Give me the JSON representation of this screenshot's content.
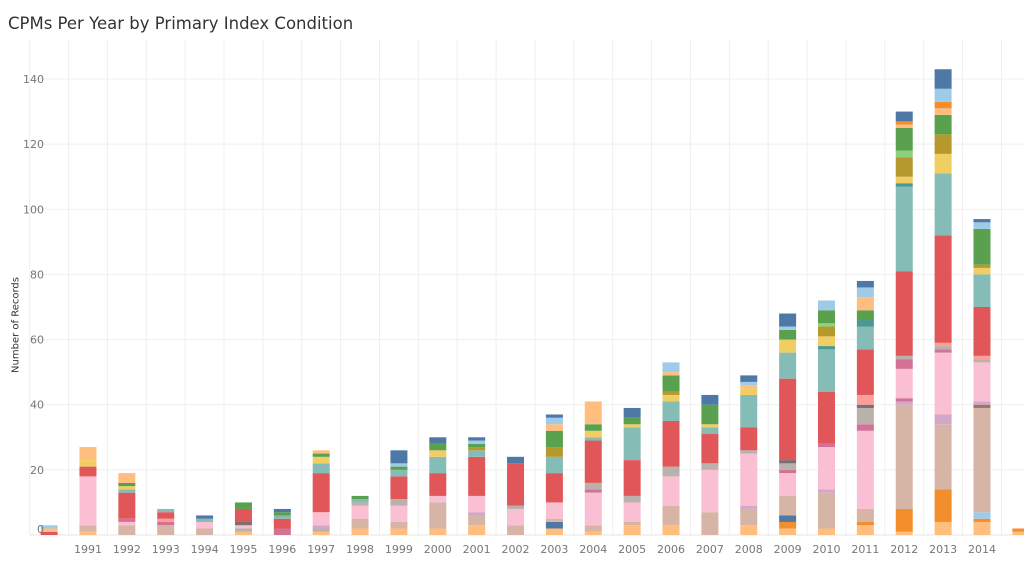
{
  "chart_data": {
    "type": "bar",
    "stacked": true,
    "title": "CPMs Per Year by Primary Index Condition",
    "xlabel": "",
    "ylabel": "Number of Records",
    "ylim": [
      0,
      140
    ],
    "yticks": [
      0,
      20,
      40,
      60,
      80,
      100,
      120,
      140
    ],
    "grid": true,
    "legend": "none",
    "colors": {
      "lo": "#ffbe7d",
      "or": "#f28e2b",
      "tan": "#d7b5a6",
      "pk": "#fabfd2",
      "mv": "#d4a6c8",
      "rp": "#d37295",
      "gy": "#bab0ac",
      "dg": "#79706e",
      "sal": "#ff9d9a",
      "red": "#e15759",
      "tl": "#86bcb6",
      "dt": "#499894",
      "yl": "#f1ce63",
      "ol": "#b6992d",
      "lg": "#8cd17d",
      "gr": "#59a14f",
      "lb": "#a0cbe8",
      "bl": "#4e79a7",
      "br": "#9d7660"
    },
    "bars": [
      {
        "year": "",
        "total": 3,
        "segments": [
          [
            "red",
            1
          ],
          [
            "lo",
            1
          ],
          [
            "lb",
            1
          ]
        ]
      },
      {
        "year": "1991",
        "total": 27,
        "segments": [
          [
            "lo",
            1
          ],
          [
            "tan",
            2
          ],
          [
            "pk",
            15
          ],
          [
            "red",
            3
          ],
          [
            "yl",
            2
          ],
          [
            "lo",
            4
          ]
        ]
      },
      {
        "year": "1992",
        "total": 19,
        "segments": [
          [
            "tan",
            3
          ],
          [
            "pk",
            1
          ],
          [
            "rp",
            1
          ],
          [
            "red",
            8
          ],
          [
            "tl",
            1
          ],
          [
            "yl",
            1
          ],
          [
            "gr",
            1
          ],
          [
            "lo",
            3
          ]
        ]
      },
      {
        "year": "1993",
        "total": 8,
        "segments": [
          [
            "tan",
            3
          ],
          [
            "rp",
            1
          ],
          [
            "sal",
            1
          ],
          [
            "red",
            2
          ],
          [
            "tl",
            1
          ]
        ]
      },
      {
        "year": "1994",
        "total": 6,
        "segments": [
          [
            "tan",
            2
          ],
          [
            "pk",
            2
          ],
          [
            "tl",
            1
          ],
          [
            "bl",
            1
          ]
        ]
      },
      {
        "year": "1995",
        "total": 10,
        "segments": [
          [
            "lo",
            1
          ],
          [
            "gy",
            1
          ],
          [
            "pk",
            1
          ],
          [
            "dg",
            1
          ],
          [
            "red",
            4
          ],
          [
            "gr",
            2
          ]
        ]
      },
      {
        "year": "1996",
        "total": 8,
        "segments": [
          [
            "rp",
            2
          ],
          [
            "red",
            3
          ],
          [
            "tl",
            1
          ],
          [
            "gr",
            1
          ],
          [
            "bl",
            1
          ]
        ]
      },
      {
        "year": "1997",
        "total": 26,
        "segments": [
          [
            "lo",
            1
          ],
          [
            "gy",
            1
          ],
          [
            "mv",
            1
          ],
          [
            "pk",
            4
          ],
          [
            "red",
            12
          ],
          [
            "tl",
            3
          ],
          [
            "yl",
            2
          ],
          [
            "gr",
            1
          ],
          [
            "lo",
            1
          ]
        ]
      },
      {
        "year": "1998",
        "total": 12,
        "segments": [
          [
            "lo",
            2
          ],
          [
            "tan",
            3
          ],
          [
            "pk",
            4
          ],
          [
            "gy",
            1
          ],
          [
            "tl",
            1
          ],
          [
            "gr",
            1
          ]
        ]
      },
      {
        "year": "1999",
        "total": 26,
        "segments": [
          [
            "lo",
            2
          ],
          [
            "tan",
            2
          ],
          [
            "pk",
            5
          ],
          [
            "gy",
            2
          ],
          [
            "red",
            7
          ],
          [
            "tl",
            2
          ],
          [
            "gr",
            1
          ],
          [
            "lb",
            1
          ],
          [
            "bl",
            4
          ]
        ]
      },
      {
        "year": "2000",
        "total": 30,
        "segments": [
          [
            "lo",
            2
          ],
          [
            "tan",
            8
          ],
          [
            "pk",
            2
          ],
          [
            "red",
            7
          ],
          [
            "tl",
            5
          ],
          [
            "yl",
            2
          ],
          [
            "gr",
            2
          ],
          [
            "bl",
            2
          ]
        ]
      },
      {
        "year": "2001",
        "total": 30,
        "segments": [
          [
            "lo",
            3
          ],
          [
            "tan",
            3
          ],
          [
            "mv",
            1
          ],
          [
            "pk",
            5
          ],
          [
            "red",
            12
          ],
          [
            "tl",
            2
          ],
          [
            "ol",
            1
          ],
          [
            "gr",
            1
          ],
          [
            "lb",
            1
          ],
          [
            "bl",
            1
          ]
        ]
      },
      {
        "year": "2002",
        "total": 24,
        "segments": [
          [
            "tan",
            3
          ],
          [
            "pk",
            5
          ],
          [
            "gy",
            1
          ],
          [
            "red",
            13
          ],
          [
            "bl",
            2
          ]
        ]
      },
      {
        "year": "2003",
        "total": 37,
        "segments": [
          [
            "lo",
            2
          ],
          [
            "bl",
            2
          ],
          [
            "tan",
            1
          ],
          [
            "pk",
            5
          ],
          [
            "red",
            9
          ],
          [
            "tl",
            5
          ],
          [
            "ol",
            3
          ],
          [
            "gr",
            5
          ],
          [
            "lo",
            2
          ],
          [
            "lb",
            2
          ],
          [
            "bl",
            1
          ]
        ]
      },
      {
        "year": "2004",
        "total": 41,
        "segments": [
          [
            "lo",
            1
          ],
          [
            "tan",
            2
          ],
          [
            "pk",
            10
          ],
          [
            "rp",
            1
          ],
          [
            "gy",
            2
          ],
          [
            "red",
            13
          ],
          [
            "tl",
            1
          ],
          [
            "yl",
            2
          ],
          [
            "gr",
            2
          ],
          [
            "lo",
            7
          ]
        ]
      },
      {
        "year": "2005",
        "total": 39,
        "segments": [
          [
            "lo",
            3
          ],
          [
            "tan",
            1
          ],
          [
            "pk",
            6
          ],
          [
            "gy",
            2
          ],
          [
            "red",
            11
          ],
          [
            "tl",
            10
          ],
          [
            "yl",
            1
          ],
          [
            "gr",
            2
          ],
          [
            "bl",
            3
          ]
        ]
      },
      {
        "year": "2006",
        "total": 53,
        "segments": [
          [
            "lo",
            3
          ],
          [
            "tan",
            6
          ],
          [
            "pk",
            9
          ],
          [
            "gy",
            3
          ],
          [
            "red",
            14
          ],
          [
            "tl",
            6
          ],
          [
            "yl",
            2
          ],
          [
            "ol",
            1
          ],
          [
            "gr",
            5
          ],
          [
            "lo",
            1
          ],
          [
            "lb",
            3
          ]
        ]
      },
      {
        "year": "2007",
        "total": 43,
        "segments": [
          [
            "tan",
            7
          ],
          [
            "pk",
            13
          ],
          [
            "gy",
            2
          ],
          [
            "red",
            9
          ],
          [
            "tl",
            2
          ],
          [
            "yl",
            1
          ],
          [
            "gr",
            6
          ],
          [
            "bl",
            3
          ]
        ]
      },
      {
        "year": "2008",
        "total": 49,
        "segments": [
          [
            "lo",
            3
          ],
          [
            "tan",
            5
          ],
          [
            "mv",
            1
          ],
          [
            "pk",
            16
          ],
          [
            "gy",
            1
          ],
          [
            "red",
            7
          ],
          [
            "tl",
            10
          ],
          [
            "yl",
            2
          ],
          [
            "lo",
            1
          ],
          [
            "lb",
            1
          ],
          [
            "bl",
            2
          ]
        ]
      },
      {
        "year": "2009",
        "total": 68,
        "segments": [
          [
            "lo",
            2
          ],
          [
            "or",
            2
          ],
          [
            "bl",
            2
          ],
          [
            "tan",
            6
          ],
          [
            "pk",
            7
          ],
          [
            "rp",
            1
          ],
          [
            "gy",
            2
          ],
          [
            "dg",
            1
          ],
          [
            "red",
            25
          ],
          [
            "tl",
            8
          ],
          [
            "yl",
            4
          ],
          [
            "gr",
            3
          ],
          [
            "lb",
            1
          ],
          [
            "bl",
            4
          ]
        ]
      },
      {
        "year": "2010",
        "total": 72,
        "segments": [
          [
            "lo",
            2
          ],
          [
            "tan",
            11
          ],
          [
            "mv",
            1
          ],
          [
            "pk",
            13
          ],
          [
            "rp",
            1
          ],
          [
            "red",
            16
          ],
          [
            "tl",
            13
          ],
          [
            "dt",
            1
          ],
          [
            "yl",
            3
          ],
          [
            "ol",
            3
          ],
          [
            "lg",
            1
          ],
          [
            "gr",
            4
          ],
          [
            "lb",
            3
          ]
        ]
      },
      {
        "year": "2011",
        "total": 78,
        "segments": [
          [
            "lo",
            3
          ],
          [
            "or",
            1
          ],
          [
            "tan",
            4
          ],
          [
            "pk",
            24
          ],
          [
            "rp",
            2
          ],
          [
            "gy",
            5
          ],
          [
            "dg",
            1
          ],
          [
            "sal",
            3
          ],
          [
            "red",
            14
          ],
          [
            "tl",
            7
          ],
          [
            "dt",
            2
          ],
          [
            "gr",
            3
          ],
          [
            "lo",
            4
          ],
          [
            "lb",
            3
          ],
          [
            "bl",
            2
          ]
        ]
      },
      {
        "year": "2012",
        "total": 130,
        "segments": [
          [
            "lo",
            1
          ],
          [
            "or",
            7
          ],
          [
            "tan",
            32
          ],
          [
            "mv",
            1
          ],
          [
            "rp",
            1
          ],
          [
            "pk",
            9
          ],
          [
            "rp",
            3
          ],
          [
            "gy",
            1
          ],
          [
            "red",
            26
          ],
          [
            "tl",
            26
          ],
          [
            "dt",
            1
          ],
          [
            "yl",
            2
          ],
          [
            "ol",
            6
          ],
          [
            "lg",
            2
          ],
          [
            "gr",
            7
          ],
          [
            "lo",
            1
          ],
          [
            "or",
            1
          ],
          [
            "bl",
            3
          ]
        ]
      },
      {
        "year": "2013",
        "total": 143,
        "segments": [
          [
            "lo",
            4
          ],
          [
            "or",
            10
          ],
          [
            "tan",
            20
          ],
          [
            "mv",
            3
          ],
          [
            "pk",
            19
          ],
          [
            "rp",
            1
          ],
          [
            "gy",
            1
          ],
          [
            "sal",
            1
          ],
          [
            "red",
            33
          ],
          [
            "tl",
            19
          ],
          [
            "yl",
            6
          ],
          [
            "ol",
            6
          ],
          [
            "gr",
            6
          ],
          [
            "lo",
            2
          ],
          [
            "or",
            2
          ],
          [
            "lb",
            4
          ],
          [
            "bl",
            6
          ]
        ]
      },
      {
        "year": "2014",
        "total": 97,
        "segments": [
          [
            "lo",
            4
          ],
          [
            "or",
            1
          ],
          [
            "lb",
            2
          ],
          [
            "tan",
            32
          ],
          [
            "br",
            1
          ],
          [
            "mv",
            1
          ],
          [
            "pk",
            12
          ],
          [
            "gy",
            1
          ],
          [
            "sal",
            1
          ],
          [
            "red",
            15
          ],
          [
            "tl",
            10
          ],
          [
            "yl",
            2
          ],
          [
            "ol",
            1
          ],
          [
            "gr",
            11
          ],
          [
            "lb",
            2
          ],
          [
            "bl",
            1
          ]
        ]
      },
      {
        "year": "",
        "total": 2,
        "segments": [
          [
            "lo",
            1
          ],
          [
            "or",
            1
          ]
        ]
      }
    ]
  }
}
